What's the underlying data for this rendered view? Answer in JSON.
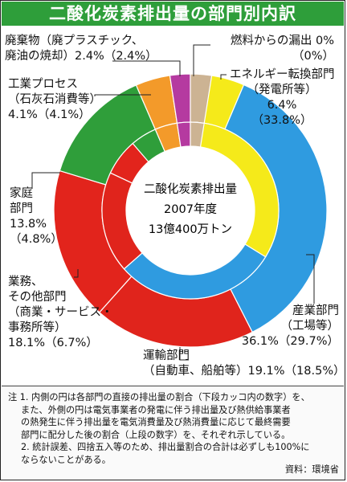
{
  "title": "二酸化炭素排出量の部門別内訳",
  "center": {
    "line1": "二酸化炭素排出量",
    "line2": "2007年度",
    "line3": "13億400万トン"
  },
  "chart_data": {
    "type": "pie",
    "title": "二酸化炭素排出量の部門別内訳",
    "note": "outer ring = allocated share (上段の数字), inner ring = direct share (下段カッコ内の数字)",
    "categories": [
      "エネルギー転換部門（発電所等）",
      "産業部門（工場等）",
      "運輸部門（自動車、船舶等）",
      "業務、その他部門（商業・サービス・事務所等）",
      "家庭部門",
      "工業プロセス（石灰石消費等）",
      "廃棄物（廃プラスチック、廃油の焼却）",
      "燃料からの漏出"
    ],
    "series": [
      {
        "name": "outer",
        "values": [
          6.4,
          36.1,
          19.1,
          18.1,
          13.8,
          4.1,
          2.4,
          0
        ]
      },
      {
        "name": "inner",
        "values": [
          33.8,
          29.7,
          18.5,
          6.7,
          4.8,
          4.1,
          2.4,
          0
        ]
      }
    ],
    "colors": [
      "#f5ea1a",
      "#2f9be0",
      "#e0241c",
      "#e2241c",
      "#2f9e3a",
      "#f39a2a",
      "#b53aa0",
      "#ccb393"
    ]
  },
  "labels": {
    "waste": {
      "l1": "廃棄物（廃プラスチック、",
      "l2": "廃油の焼却）2.4%（2.4%）"
    },
    "fuel": {
      "l1": "燃料からの漏出  0%",
      "l2": "（0%）"
    },
    "energy": {
      "l1": "エネルギー転換部門",
      "l2": "（発電所等）",
      "l3": "6.4%",
      "l4": "（33.8%）"
    },
    "process": {
      "l1": "工業プロセス",
      "l2": "（石灰石消費等）",
      "l3": "4.1%（4.1%）"
    },
    "household": {
      "l1": "家庭",
      "l2": "部門",
      "l3": "13.8%",
      "l4": "（4.8%）"
    },
    "commercial": {
      "l1": "業務、",
      "l2": "その他部門",
      "l3": "（商業・サービス・",
      "l4": "事務所等）",
      "l5": "18.1%（6.7%）"
    },
    "industry": {
      "l1": "産業部門",
      "l2": "（工場等）",
      "l3": "36.1%（29.7%）"
    },
    "transport": {
      "l1": "運輸部門",
      "l2": "（自動車、船舶等）19.1%（18.5%）"
    }
  },
  "notes": {
    "n1a": "注 1. 内側の円は各部門の直接の排出量の割合（下段カッコ内の数字）を、",
    "n1b": "また、外側の円は電気事業者の発電に伴う排出量及び熱供給事業者",
    "n1c": "の熱発生に伴う排出量を電気消費量及び熱消費量に応じて最終需要",
    "n1d": "部門に配分した後の割合（上段の数字）を、それぞれ示している。",
    "n2a": "2. 統計誤差、四捨五入等のため、排出量割合の合計は必ずしも100%に",
    "n2b": "ならないことがある。",
    "source": "資料：環境省"
  }
}
